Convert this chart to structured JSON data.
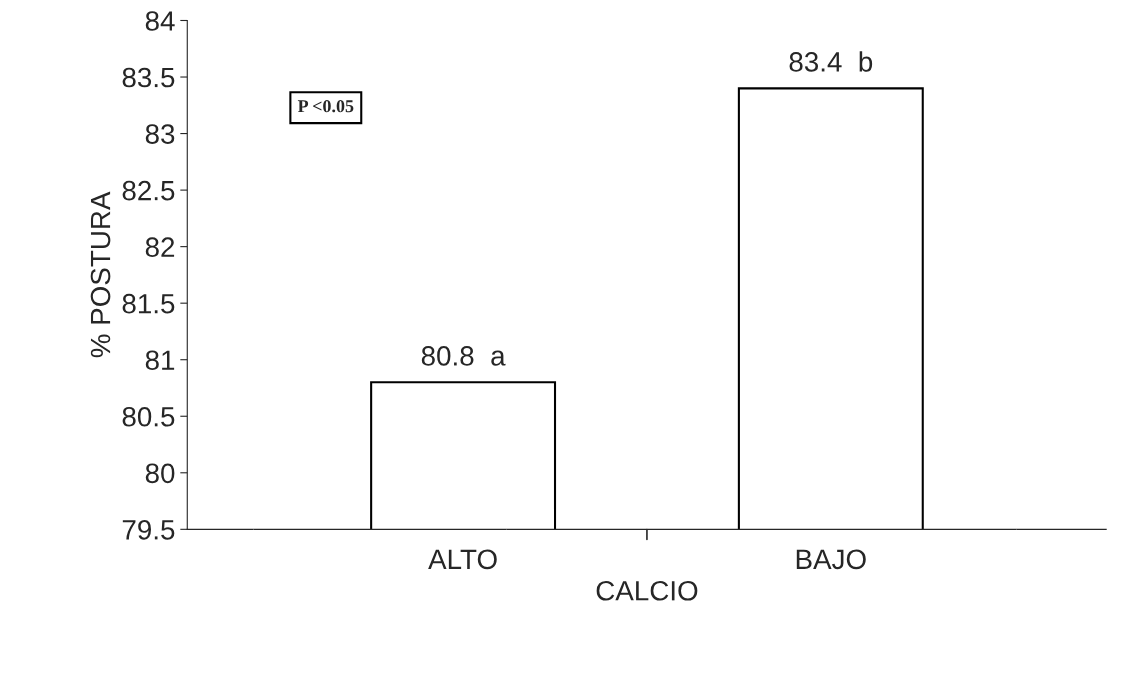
{
  "chart_data": {
    "type": "bar",
    "xlabel": "CALCIO",
    "ylabel": "% POSTURA",
    "categories": [
      "ALTO",
      "BAJO"
    ],
    "values": [
      80.8,
      83.4
    ],
    "value_labels": [
      "80.8  a",
      "83.4  b"
    ],
    "color": "#ffffff",
    "ylim": [
      79.5,
      84
    ],
    "yticks": [
      79.5,
      80,
      80.5,
      81,
      81.5,
      82,
      82.5,
      83,
      83.5,
      84
    ],
    "annotations": [
      "P <0.05"
    ],
    "grid": false,
    "legend": false
  }
}
